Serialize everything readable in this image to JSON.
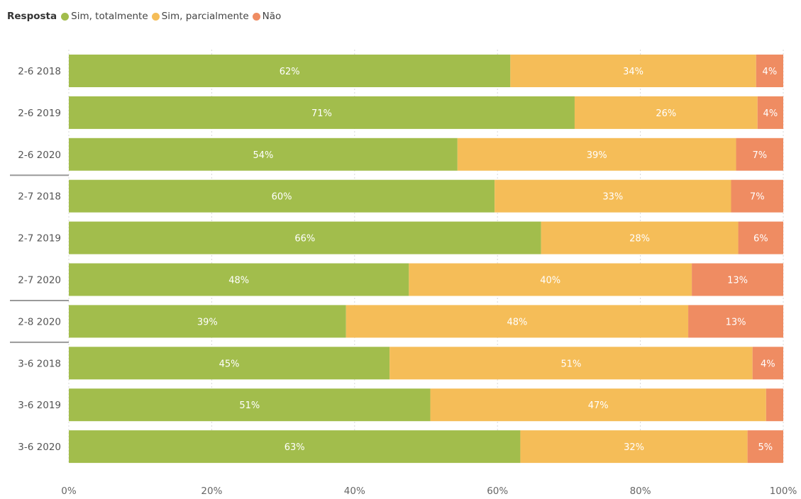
{
  "legend": {
    "title": "Resposta",
    "items": [
      {
        "label": "Sim, totalmente",
        "color": "#a2bd4c"
      },
      {
        "label": "Sim, parcialmente",
        "color": "#f5bd58"
      },
      {
        "label": "Não",
        "color": "#ef8c62"
      }
    ]
  },
  "chart_data": {
    "type": "bar",
    "orientation": "horizontal",
    "stacked": true,
    "normalized": true,
    "categories": [
      "2-6 2018",
      "2-6 2019",
      "2-6 2020",
      "2-7 2018",
      "2-7 2019",
      "2-7 2020",
      "2-8 2020",
      "3-6 2018",
      "3-6 2019",
      "3-6 2020"
    ],
    "group_separators_after_index": [
      2,
      5,
      6
    ],
    "series": [
      {
        "name": "Sim, totalmente",
        "color": "#a2bd4c",
        "values": [
          61.8,
          70.8,
          54.4,
          59.6,
          66.1,
          47.6,
          38.8,
          44.9,
          50.6,
          63.2
        ],
        "labels": [
          "62%",
          "71%",
          "54%",
          "60%",
          "66%",
          "48%",
          "39%",
          "45%",
          "51%",
          "63%"
        ]
      },
      {
        "name": "Sim, parcialmente",
        "color": "#f5bd58",
        "values": [
          34.4,
          25.6,
          39.0,
          33.1,
          27.6,
          39.6,
          47.9,
          50.8,
          47.0,
          31.8
        ],
        "labels": [
          "34%",
          "26%",
          "39%",
          "33%",
          "28%",
          "40%",
          "48%",
          "51%",
          "47%",
          "32%"
        ]
      },
      {
        "name": "Não",
        "color": "#ef8c62",
        "values": [
          3.8,
          3.6,
          6.6,
          7.3,
          6.3,
          12.8,
          13.3,
          4.3,
          2.4,
          5.0
        ],
        "labels": [
          "4%",
          "4%",
          "7%",
          "7%",
          "6%",
          "13%",
          "13%",
          "4%",
          "",
          "5%"
        ]
      }
    ],
    "xlim": [
      0,
      100
    ],
    "x_ticks": [
      "0%",
      "20%",
      "40%",
      "60%",
      "80%",
      "100%"
    ],
    "grid": "vertical dashed"
  }
}
